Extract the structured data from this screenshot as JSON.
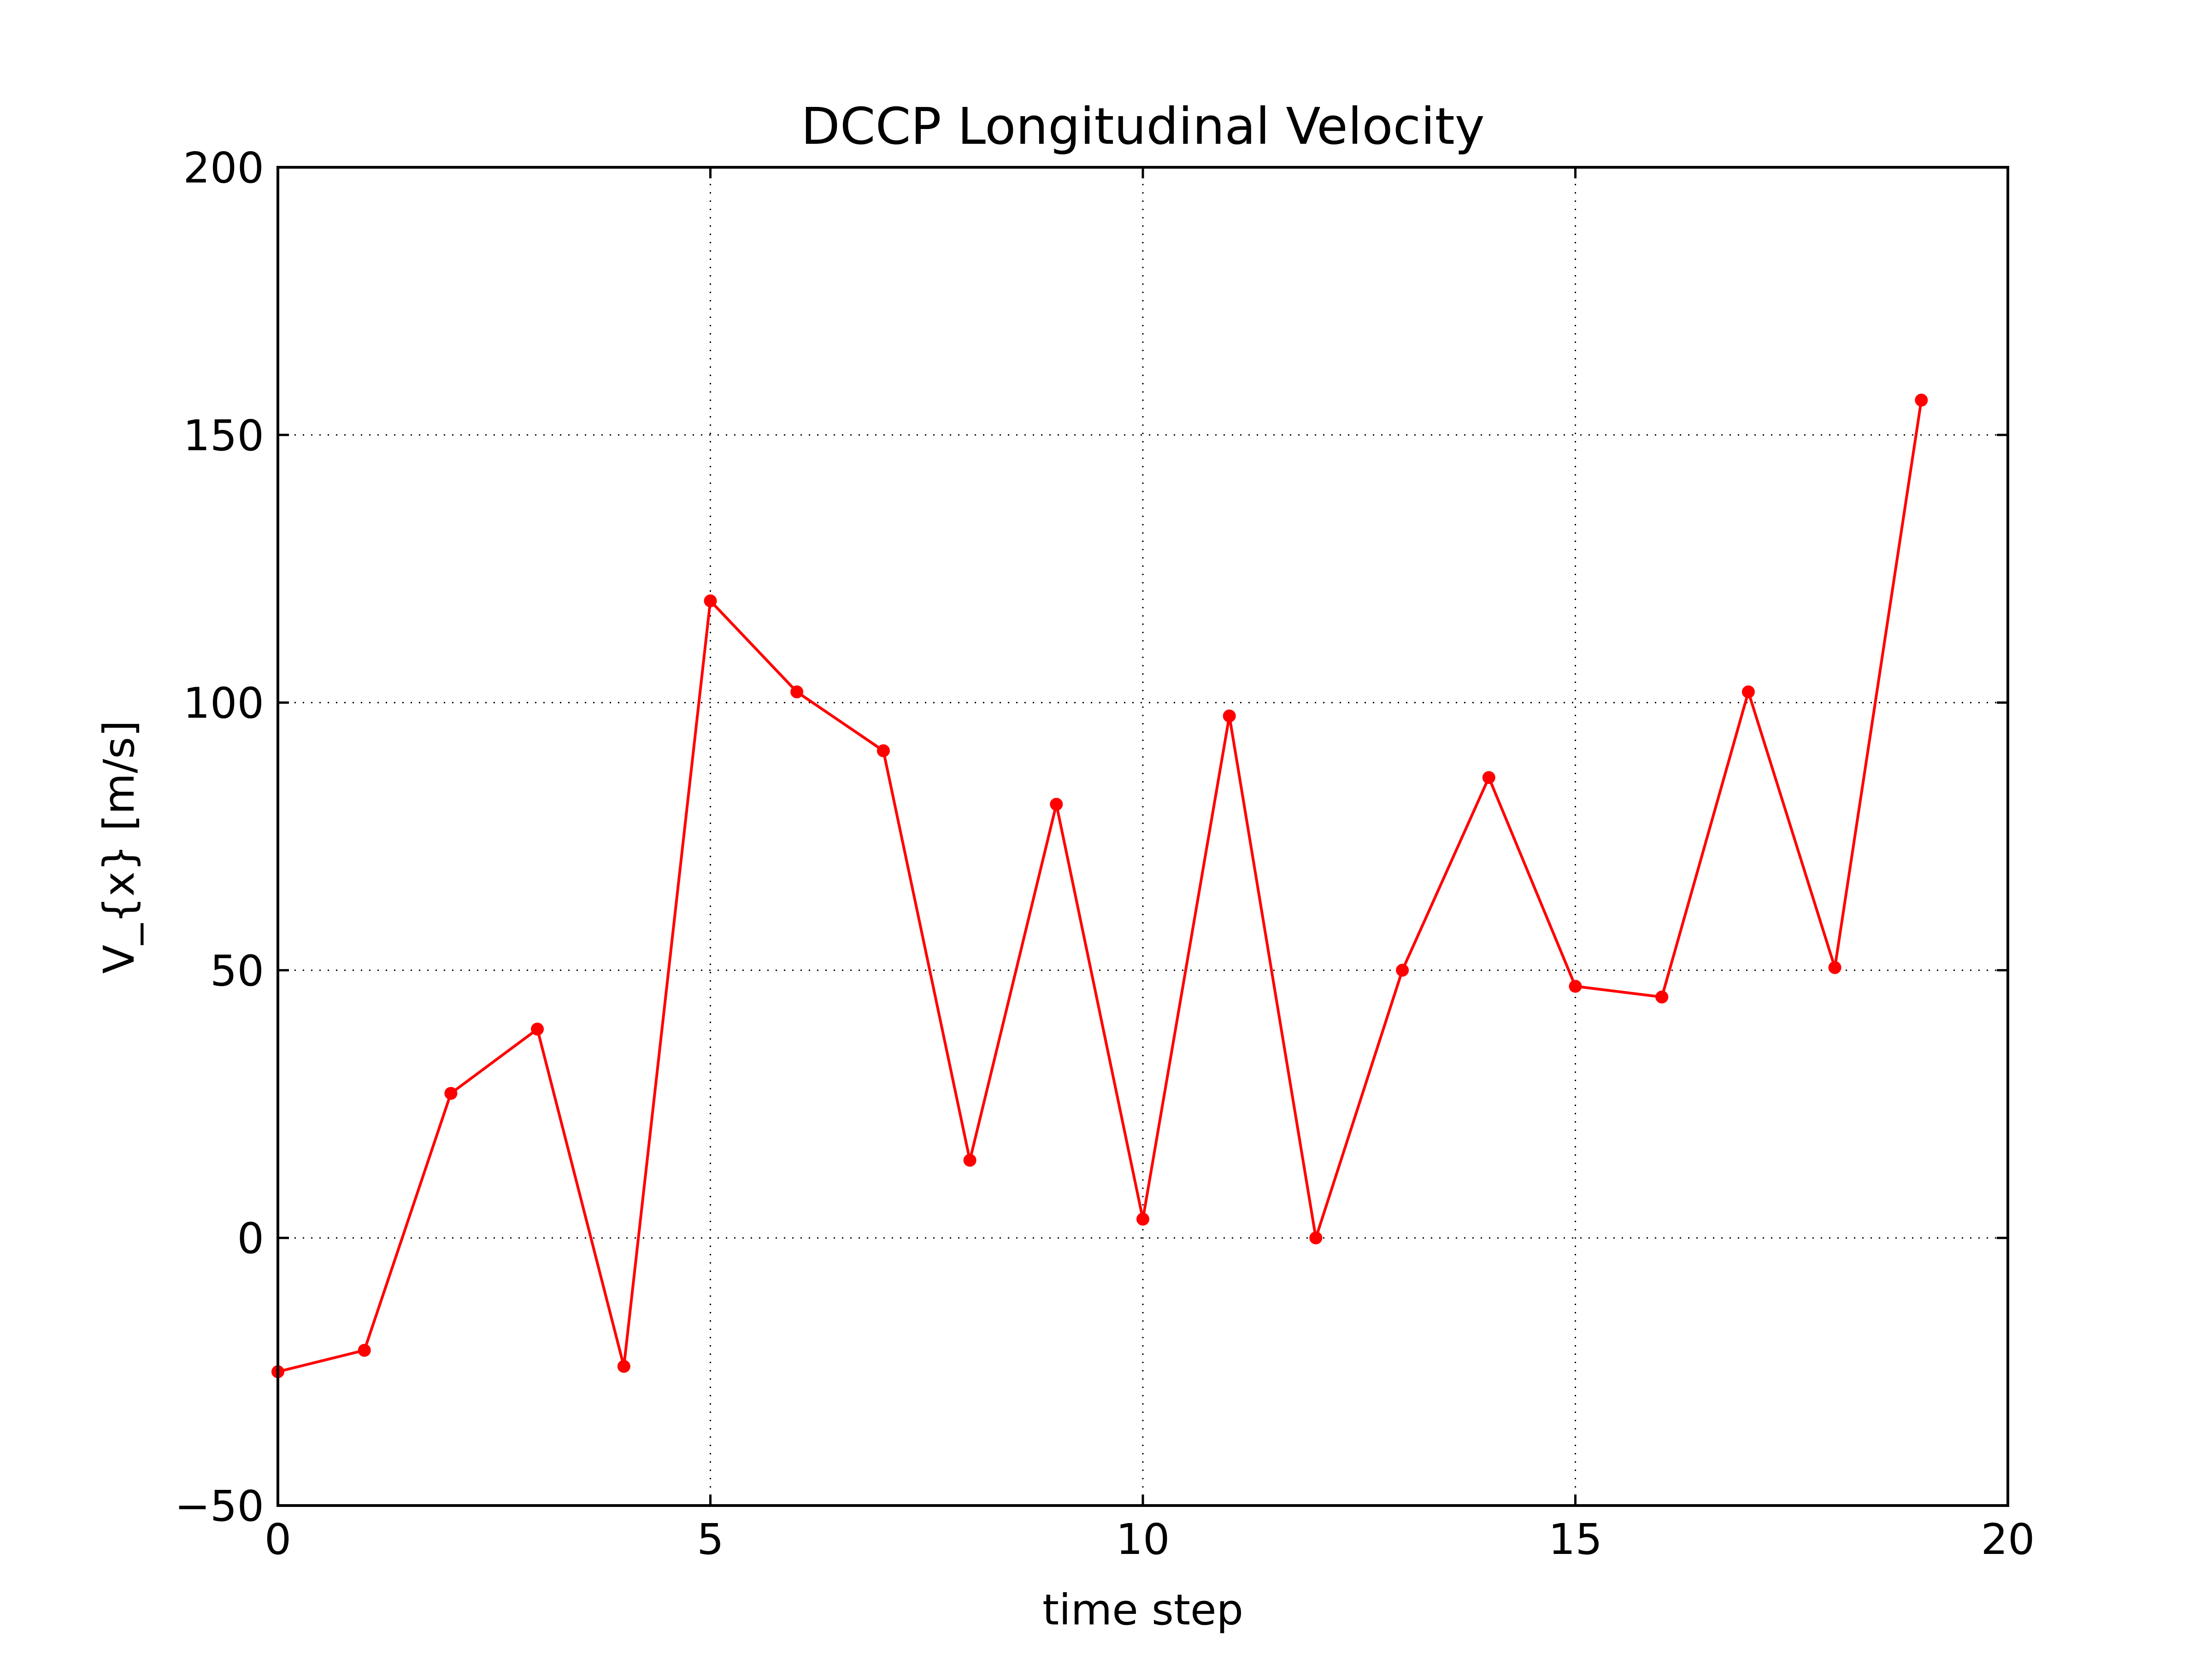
{
  "chart_data": {
    "type": "line",
    "title": "DCCP Longitudinal Velocity",
    "xlabel": "time step",
    "ylabel": "V_{x} [m/s]",
    "xlim": [
      0,
      20
    ],
    "ylim": [
      -50,
      200
    ],
    "xticks": [
      0,
      5,
      10,
      15,
      20
    ],
    "yticks": [
      -50,
      0,
      50,
      100,
      150,
      200
    ],
    "xtick_labels": [
      "0",
      "5",
      "10",
      "15",
      "20"
    ],
    "ytick_labels": [
      "−50",
      "0",
      "50",
      "100",
      "150",
      "200"
    ],
    "grid": true,
    "legend": "none",
    "series": [
      {
        "color": "#ff0000",
        "marker": "circle",
        "x": [
          0,
          1,
          2,
          3,
          4,
          5,
          6,
          7,
          8,
          9,
          10,
          11,
          12,
          13,
          14,
          15,
          16,
          17,
          18,
          19
        ],
        "y": [
          -25,
          -21,
          27,
          39,
          -24,
          119,
          102,
          91,
          14.5,
          81,
          3.5,
          97.5,
          0,
          50,
          86,
          47,
          45,
          102,
          50.5,
          156.5
        ]
      }
    ]
  }
}
